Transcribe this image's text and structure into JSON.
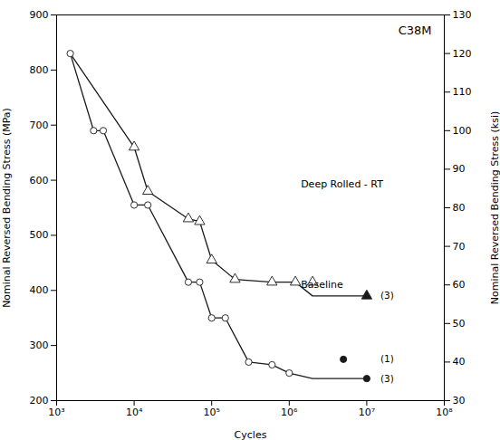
{
  "chart_data": {
    "type": "line",
    "title": "C38M",
    "xlabel": "Cycles",
    "ylabel": "Nominal Reversed Bending Stress (MPa)",
    "y2label": "Nominal Reversed Bending Stress (ksi)",
    "log": "x",
    "grid": false,
    "xlim": [
      1000,
      100000000
    ],
    "ylim": [
      200,
      900
    ],
    "y2lim": [
      30,
      130
    ],
    "xticks": [
      {
        "value": 1000,
        "label": "10³"
      },
      {
        "value": 10000,
        "label": "10⁴"
      },
      {
        "value": 100000,
        "label": "10⁵"
      },
      {
        "value": 1000000,
        "label": "10⁶"
      },
      {
        "value": 10000000,
        "label": "10⁷"
      },
      {
        "value": 100000000,
        "label": "10⁸"
      }
    ],
    "yticks": [
      200,
      300,
      400,
      500,
      600,
      700,
      800,
      900
    ],
    "y2ticks": [
      30,
      40,
      50,
      60,
      70,
      80,
      90,
      100,
      110,
      120,
      130
    ],
    "series": [
      {
        "type": "line",
        "color": "#1a1a1a",
        "x": [
          1500,
          3000,
          4000,
          10000,
          15000,
          50000,
          70000,
          100000,
          150000,
          300000,
          600000,
          1000000,
          2000000,
          10000000
        ],
        "values": [
          830,
          690,
          690,
          555,
          555,
          415,
          415,
          350,
          350,
          270,
          265,
          250,
          240,
          240
        ]
      },
      {
        "type": "scatter",
        "marker": "open_circle",
        "color": "#1a1a1a",
        "x": [
          1500,
          3000,
          4000,
          10000,
          15000,
          50000,
          70000,
          100000,
          150000,
          300000,
          600000,
          1000000
        ],
        "values": [
          830,
          690,
          690,
          555,
          555,
          415,
          415,
          350,
          350,
          270,
          265,
          250
        ]
      },
      {
        "type": "scatter",
        "marker": "circle",
        "color": "#1a1a1a",
        "x": [
          5000000
        ],
        "values": [
          275
        ]
      },
      {
        "type": "scatter",
        "marker": "circle",
        "color": "#1a1a1a",
        "x": [
          10000000
        ],
        "values": [
          240
        ]
      },
      {
        "type": "line",
        "color": "#1a1a1a",
        "x": [
          1500,
          10000,
          15000,
          50000,
          70000,
          100000,
          200000,
          600000,
          1200000,
          2000000,
          10000000
        ],
        "values": [
          830,
          660,
          580,
          530,
          525,
          455,
          420,
          415,
          415,
          390,
          390
        ]
      },
      {
        "type": "scatter",
        "marker": "open_triangle",
        "color": "#1a1a1a",
        "x": [
          10000,
          15000,
          50000,
          70000,
          100000,
          200000,
          600000,
          1200000,
          2000000
        ],
        "values": [
          660,
          580,
          530,
          525,
          455,
          420,
          415,
          415,
          415
        ]
      },
      {
        "type": "scatter",
        "marker": "triangle",
        "color": "#1a1a1a",
        "x": [
          10000000
        ],
        "values": [
          390
        ]
      }
    ],
    "annotations": [
      {
        "text": "Deep Rolled - RT"
      },
      {
        "text": "(3)",
        "x": 15000000,
        "y": 390
      },
      {
        "text": "Baseline"
      },
      {
        "text": "(1)",
        "x": 15000000,
        "y": 275
      },
      {
        "text": "(3)",
        "x": 15000000,
        "y": 240
      }
    ]
  }
}
